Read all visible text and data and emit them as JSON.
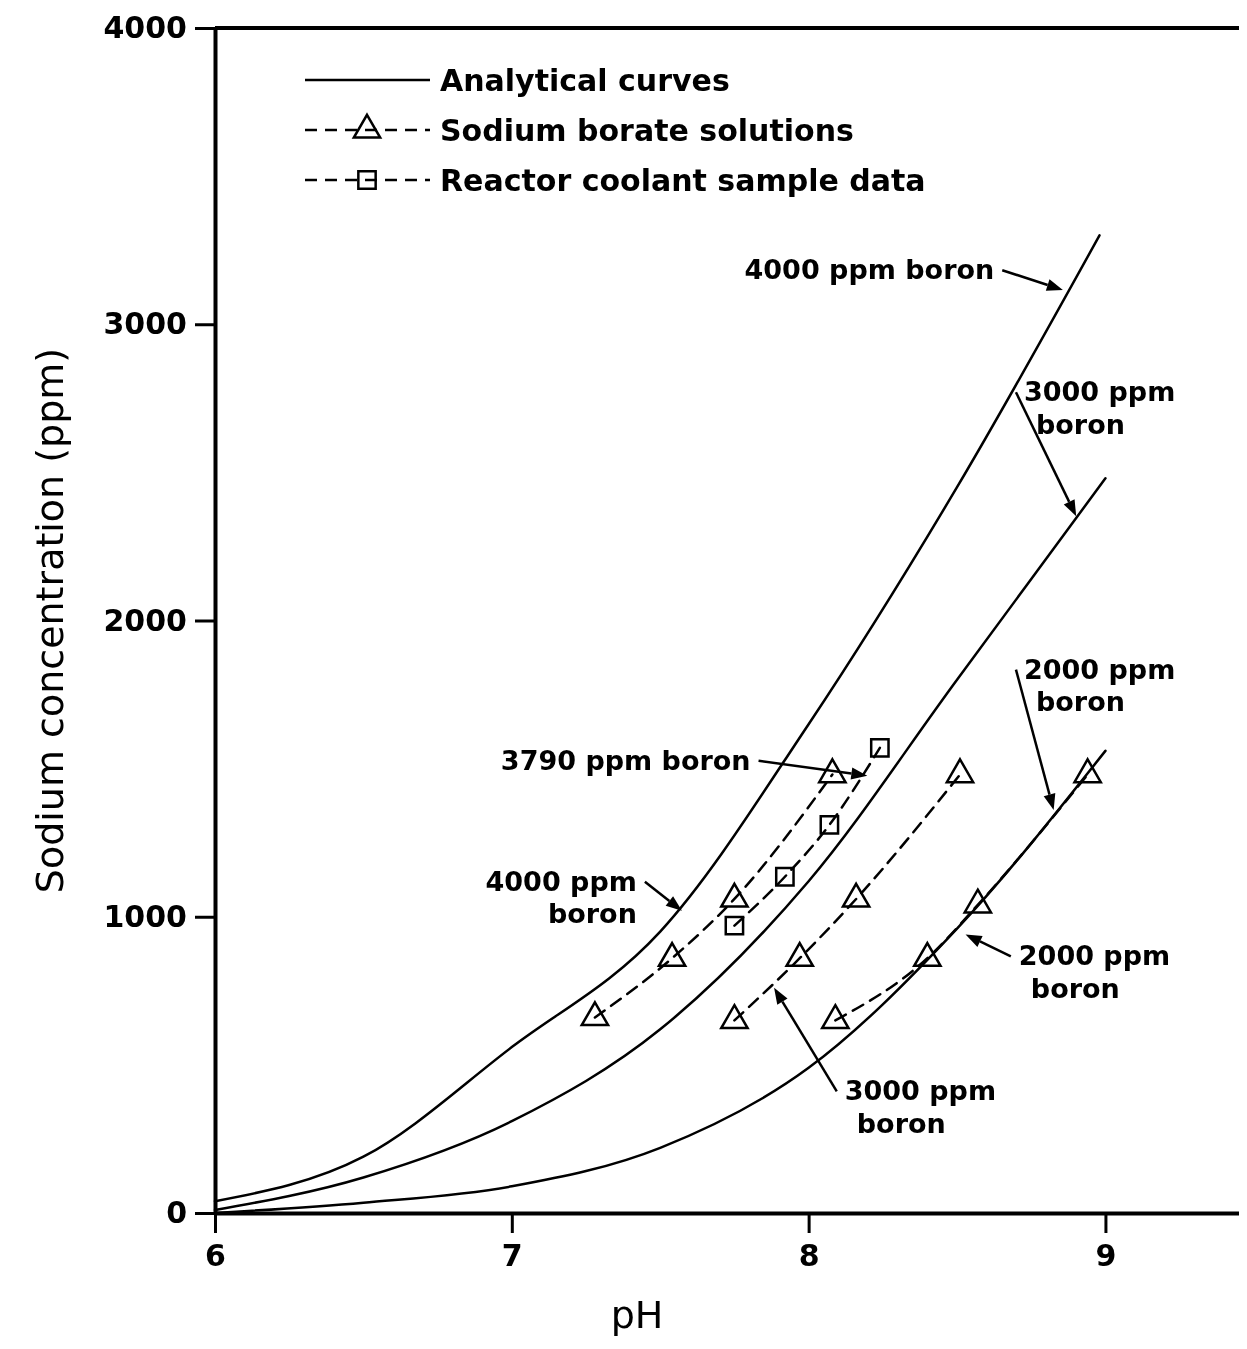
{
  "chart_data": {
    "type": "line",
    "xlabel": "pH",
    "ylabel": "Sodium concentration (ppm)",
    "xlim": [
      6,
      9.45
    ],
    "ylim": [
      0,
      4000
    ],
    "xticks": [
      6,
      7,
      8,
      9
    ],
    "yticks": [
      0,
      1000,
      2000,
      3000,
      4000
    ],
    "grid": false,
    "legend": "top left",
    "series": [
      {
        "name": "Analytical curves",
        "color": "#000000",
        "marker": "none",
        "line_style": "solid",
        "x": [
          6,
          6.5,
          7,
          7.5,
          8,
          8.5,
          8.98
        ],
        "values": [
          40,
          190,
          560,
          950,
          1650,
          2450,
          3300
        ]
      },
      {
        "color": "#000000",
        "marker": "none",
        "line_style": "solid",
        "x": [
          6,
          6.5,
          7,
          7.5,
          8,
          8.5,
          9
        ],
        "values": [
          10,
          120,
          310,
          620,
          1120,
          1800,
          2480
        ]
      },
      {
        "color": "#000000",
        "marker": "none",
        "line_style": "solid",
        "x": [
          6,
          6.5,
          7,
          7.5,
          8,
          8.5,
          9
        ],
        "values": [
          0,
          35,
          90,
          220,
          490,
          960,
          1560
        ]
      },
      {
        "name": "Sodium borate solutions",
        "color": "#000000",
        "marker": "triangle",
        "line_style": "dashed",
        "x": [
          7.28,
          7.54,
          7.75,
          8.08
        ],
        "values": [
          660,
          860,
          1060,
          1480
        ]
      },
      {
        "color": "#000000",
        "marker": "triangle",
        "line_style": "dashed",
        "x": [
          7.75,
          7.97,
          8.16,
          8.51
        ],
        "values": [
          650,
          860,
          1060,
          1480
        ]
      },
      {
        "color": "#000000",
        "marker": "triangle",
        "line_style": "dashed",
        "x": [
          8.09,
          8.4,
          8.57,
          8.94
        ],
        "values": [
          650,
          860,
          1040,
          1480
        ]
      },
      {
        "name": "Reactor coolant sample data",
        "color": "#000000",
        "marker": "square",
        "line_style": "dashed",
        "x": [
          7.75,
          7.92,
          8.07,
          8.24
        ],
        "values": [
          970,
          1135,
          1310,
          1570
        ]
      }
    ],
    "annotations": [
      "4000 ppm boron",
      "3000 ppm boron",
      "2000 ppm boron",
      "3790 ppm boron",
      "4000 ppm boron",
      "2000 ppm boron",
      "3000 ppm boron"
    ]
  }
}
